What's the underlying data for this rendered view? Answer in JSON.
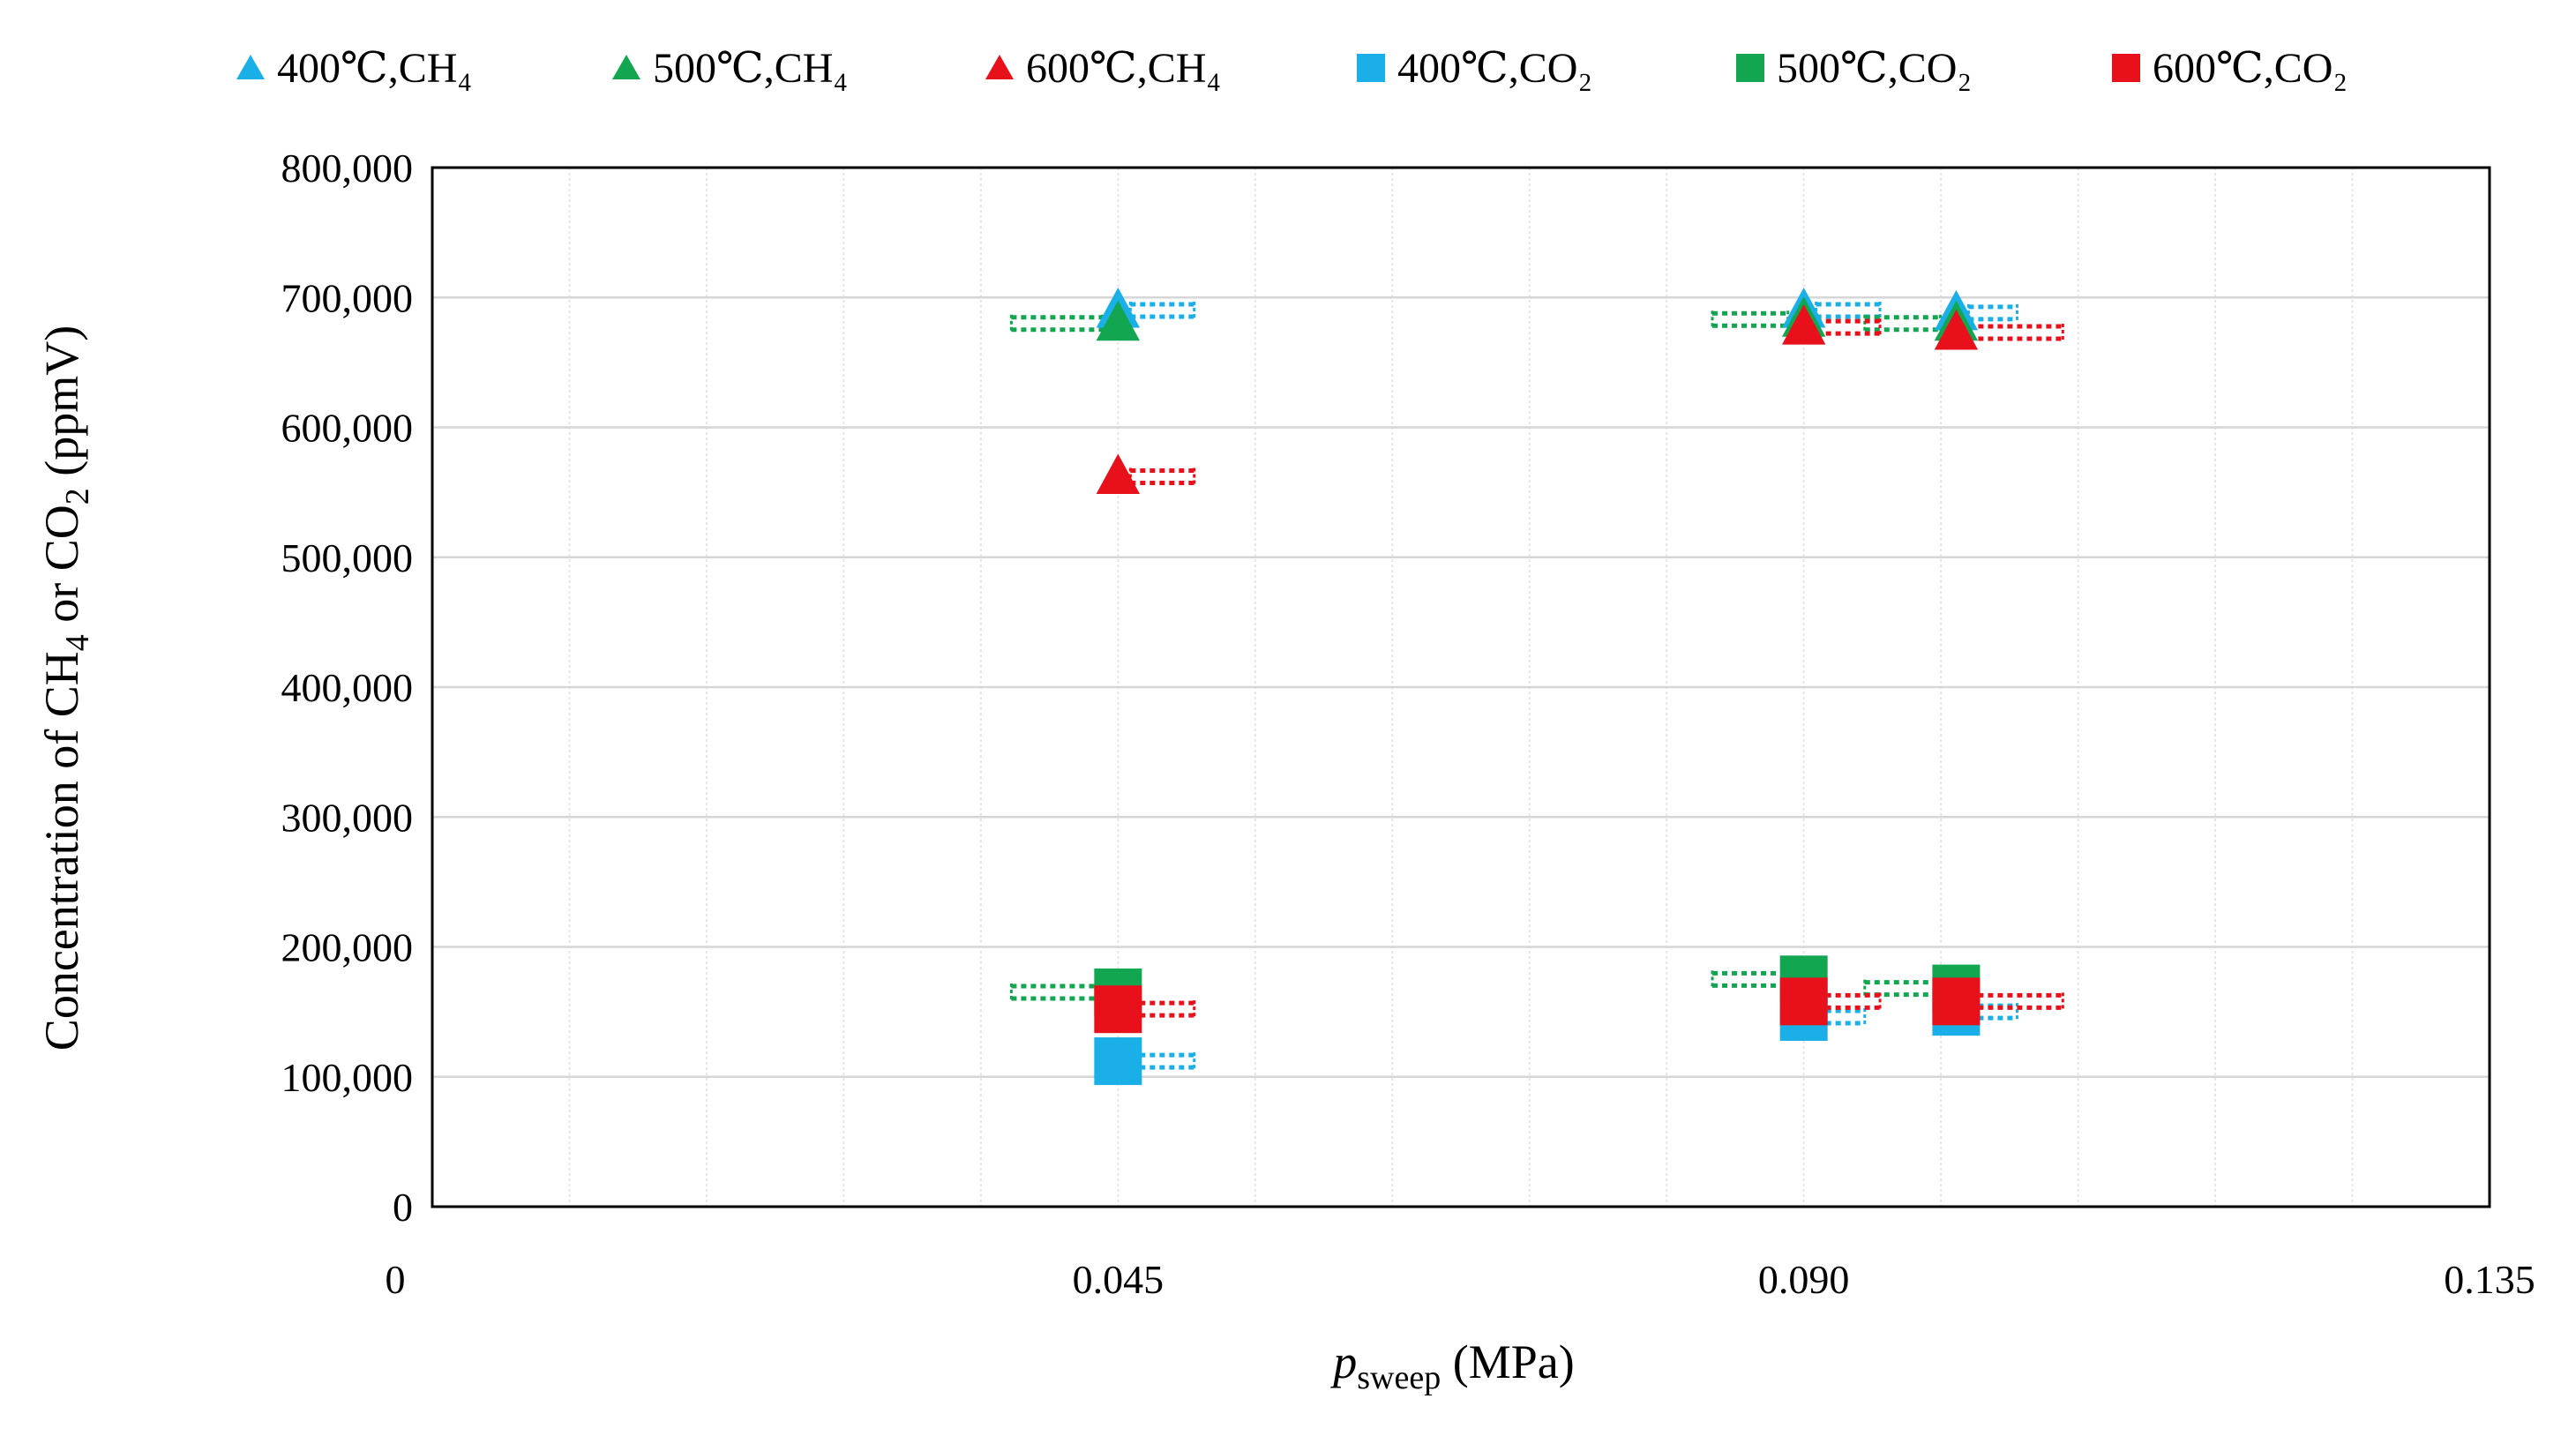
{
  "chart_data": {
    "type": "scatter",
    "xlabel_main": "p",
    "xlabel_sub": "sweep",
    "xlabel_unit": " (MPa)",
    "ylabel_part1": "Concentration of CH",
    "ylabel_sub1": "4",
    "ylabel_part2": " or CO",
    "ylabel_sub2": "2",
    "ylabel_part3": " (ppmV)",
    "xlim": [
      0,
      0.135
    ],
    "ylim": [
      0,
      800000
    ],
    "x_tick_values": [
      0,
      0.045,
      0.09,
      0.135
    ],
    "x_tick_labels": [
      "0",
      "0.045",
      "0.090",
      "0.135"
    ],
    "y_tick_values": [
      0,
      100000,
      200000,
      300000,
      400000,
      500000,
      600000,
      700000,
      800000
    ],
    "y_tick_labels": [
      "0",
      "100,000",
      "200,000",
      "300,000",
      "400,000",
      "500,000",
      "600,000",
      "700,000",
      "800,000"
    ],
    "grid": true,
    "vertical_grid_step": 0.009,
    "legend_position": "top",
    "series": [
      {
        "name": "400℃,CH₄",
        "marker": "triangle",
        "color": "#1AAFE6",
        "x": [
          0.045,
          0.09,
          0.1
        ],
        "y": [
          690000,
          690000,
          688000
        ],
        "err_minus": [
          0,
          0,
          0
        ],
        "err_plus": [
          0.005,
          0.005,
          0.004
        ]
      },
      {
        "name": "500℃,CH₄",
        "marker": "triangle",
        "color": "#12A650",
        "x": [
          0.045,
          0.09,
          0.1
        ],
        "y": [
          680000,
          683000,
          680000
        ],
        "err_minus": [
          0.007,
          0.006,
          0.006
        ],
        "err_plus": [
          0,
          0,
          0
        ]
      },
      {
        "name": "600℃,CH₄",
        "marker": "triangle",
        "color": "#E8101A",
        "x": [
          0.045,
          0.09,
          0.1
        ],
        "y": [
          562000,
          677000,
          673000
        ],
        "err_minus": [
          0,
          0,
          0
        ],
        "err_plus": [
          0.005,
          0.005,
          0.007
        ]
      },
      {
        "name": "400℃,CO₂",
        "marker": "square",
        "color": "#1AAFE6",
        "x": [
          0.045,
          0.09,
          0.1
        ],
        "y": [
          112000,
          146000,
          150000
        ],
        "err_minus": [
          0,
          0,
          0
        ],
        "err_plus": [
          0.005,
          0.004,
          0.004
        ]
      },
      {
        "name": "500℃,CO₂",
        "marker": "square",
        "color": "#12A650",
        "x": [
          0.045,
          0.09,
          0.1
        ],
        "y": [
          165000,
          175000,
          168000
        ],
        "err_minus": [
          0.007,
          0.006,
          0.006
        ],
        "err_plus": [
          0,
          0,
          0
        ]
      },
      {
        "name": "600℃,CO₂",
        "marker": "square",
        "color": "#E8101A",
        "x": [
          0.045,
          0.09,
          0.1
        ],
        "y": [
          152000,
          158000,
          158000
        ],
        "err_minus": [
          0,
          0,
          0
        ],
        "err_plus": [
          0.005,
          0.005,
          0.007
        ]
      }
    ]
  }
}
